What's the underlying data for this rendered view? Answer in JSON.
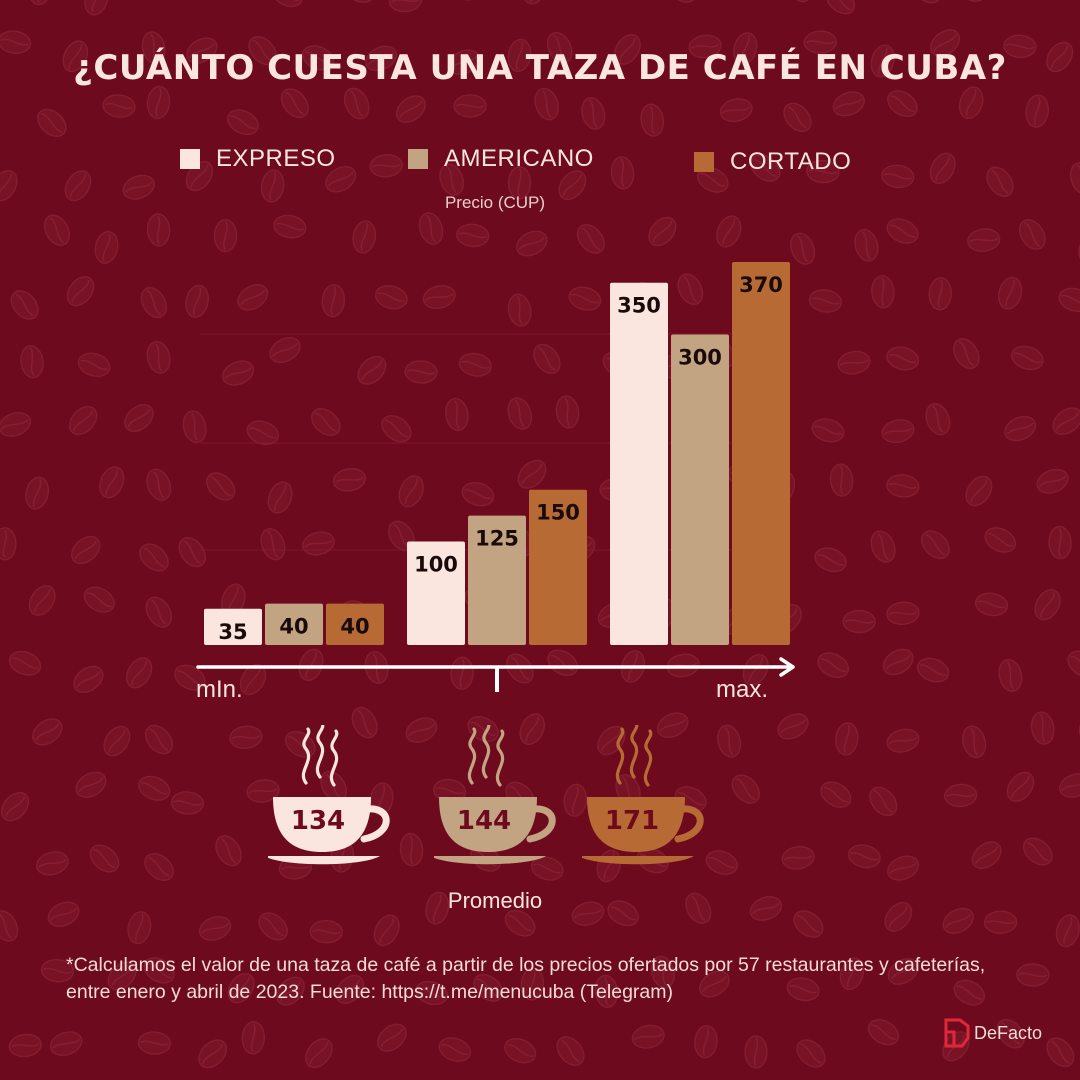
{
  "title": "¿CUÁNTO CUESTA UNA TAZA DE CAFÉ EN CUBA?",
  "legend": [
    {
      "label": "EXPRESO",
      "color": "#fbe6df"
    },
    {
      "label": "AMERICANO",
      "color": "#c2a382"
    },
    {
      "label": "CORTADO",
      "color": "#b86a35"
    }
  ],
  "chart_data": {
    "type": "bar",
    "categories": [
      "mIn.",
      "",
      "max."
    ],
    "series": [
      {
        "name": "EXPRESO",
        "values": [
          35,
          100,
          350
        ],
        "color": "#fbe6df"
      },
      {
        "name": "AMERICANO",
        "values": [
          40,
          125,
          300
        ],
        "color": "#c2a382"
      },
      {
        "name": "CORTADO",
        "values": [
          40,
          150,
          370
        ],
        "color": "#b86a35"
      }
    ],
    "ylabel": "Precio (CUP)",
    "ylim": [
      0,
      370
    ],
    "axis_start_label": "mIn.",
    "axis_end_label": "max.",
    "grid": true,
    "legend_position": "top"
  },
  "averages": {
    "label": "Promedio",
    "items": [
      {
        "series": "EXPRESO",
        "value": "134",
        "color": "#fbe6df"
      },
      {
        "series": "AMERICANO",
        "value": "144",
        "color": "#c2a382"
      },
      {
        "series": "CORTADO",
        "value": "171",
        "color": "#b86a35"
      }
    ]
  },
  "footnote": "*Calculamos el valor de una taza de café a partir de los precios ofertados por 57 restaurantes y cafeterías,  entre  enero y abril de 2023.  Fuente: https://t.me/menucuba  (Telegram)",
  "brand": {
    "name": "DeFacto",
    "logo_color": "#e0283a"
  },
  "icons": {
    "cup": "coffee-cup-icon",
    "bean": "coffee-bean-icon"
  }
}
